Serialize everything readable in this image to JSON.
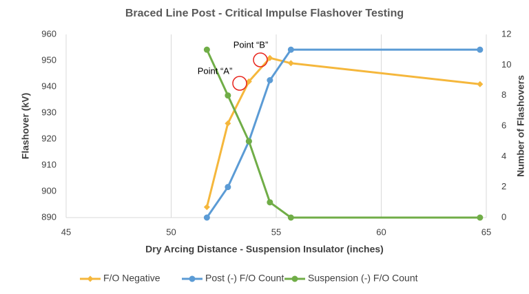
{
  "chart_data": {
    "type": "line",
    "title": "Braced Line Post - Critical Impulse Flashover Testing",
    "x_label": "Dry Arcing Distance - Suspension Insulator (inches)",
    "y_label": "Flashover (kV)",
    "y2_label": "Number of Flashovers",
    "x": [
      51.7,
      52.7,
      53.7,
      54.7,
      55.7,
      64.7
    ],
    "series": [
      {
        "name": "F/O Negative",
        "color": "#f5b73c",
        "marker": "diamond",
        "values": [
          894,
          926,
          942,
          951,
          949,
          941
        ]
      },
      {
        "name": "Post (-) F/O Count",
        "color": "#5b9bd5",
        "marker": "circle",
        "axis": "y2",
        "values": [
          0,
          2,
          5,
          9,
          11,
          11
        ]
      },
      {
        "name": "Suspension (-) F/O Count",
        "color": "#70ad47",
        "marker": "circle",
        "axis": "y2",
        "values": [
          11,
          8,
          5,
          1,
          0,
          0
        ]
      }
    ],
    "xlim": [
      45,
      65
    ],
    "xticks": [
      45,
      50,
      55,
      60,
      65
    ],
    "ylim": [
      890,
      960
    ],
    "yticks": [
      890,
      900,
      910,
      920,
      930,
      940,
      950,
      960
    ],
    "y2lim": [
      0,
      12
    ],
    "y2ticks": [
      0,
      2,
      4,
      6,
      8,
      10,
      12
    ],
    "grid": true,
    "legend": "bottom",
    "annotations": [
      {
        "text": "Point “B”"
      },
      {
        "text": "Point “A”"
      }
    ]
  }
}
